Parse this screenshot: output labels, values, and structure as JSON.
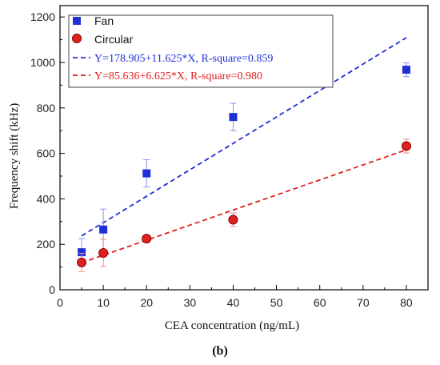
{
  "chart_data": {
    "type": "scatter",
    "xlabel": "CEA concentration (ng/mL)",
    "ylabel": "Frequency shift (kHz)",
    "xlim": [
      0,
      85
    ],
    "ylim": [
      0,
      1250
    ],
    "xticks": [
      0,
      10,
      20,
      30,
      40,
      50,
      60,
      70,
      80
    ],
    "yticks": [
      0,
      200,
      400,
      600,
      800,
      1000,
      1200
    ],
    "grid": false,
    "legend_position": "top-left",
    "panel_label": "(b)",
    "series": [
      {
        "name": "Fan",
        "marker": "square",
        "color": "#1f2fd6",
        "x": [
          5,
          10,
          20,
          40,
          80
        ],
        "y": [
          165,
          265,
          512,
          760,
          968
        ],
        "err": [
          60,
          90,
          60,
          60,
          30
        ],
        "fit": {
          "label": "Y=178.905+11.625*X, R-square=0.859",
          "intercept": 178.905,
          "slope": 11.625,
          "x_range": [
            5,
            80
          ]
        }
      },
      {
        "name": "Circular",
        "marker": "circle",
        "color": "#e02020",
        "x": [
          5,
          10,
          20,
          40,
          80
        ],
        "y": [
          120,
          162,
          225,
          308,
          632
        ],
        "err": [
          40,
          60,
          10,
          30,
          30
        ],
        "fit": {
          "label": "Y=85.636+6.625*X, R-square=0.980",
          "intercept": 85.636,
          "slope": 6.625,
          "x_range": [
            5,
            80
          ]
        }
      }
    ]
  }
}
